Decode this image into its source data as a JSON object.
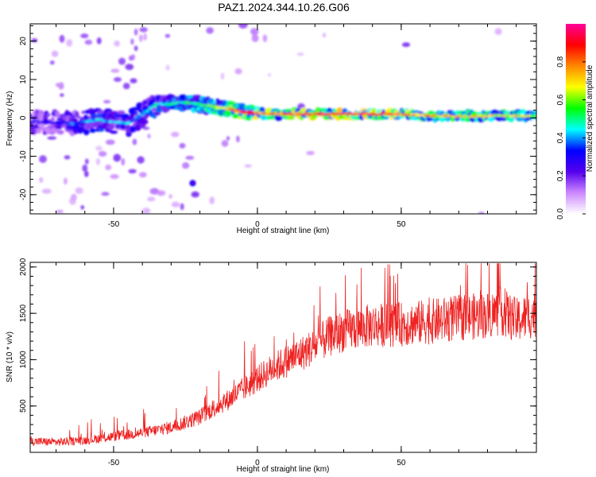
{
  "title": "PAZ1.2024.344.10.26.G06",
  "chart_data": [
    {
      "type": "heatmap",
      "xlabel": "Height of straight line (km)",
      "ylabel": "Frequency (Hz)",
      "xlim": [
        -79,
        97
      ],
      "ylim": [
        -25,
        24.5
      ],
      "xticks": [
        -50,
        0,
        50
      ],
      "yticks": [
        -20,
        -10,
        0,
        10,
        20
      ],
      "colorbar": {
        "label": "Normalized spectral amplitude",
        "range": [
          0,
          1
        ],
        "ticks": [
          0.0,
          0.2,
          0.4,
          0.6,
          0.8
        ],
        "colors": [
          "#ffffff",
          "#cc88ff",
          "#5500ee",
          "#0000ff",
          "#00ffff",
          "#00ff00",
          "#ffff00",
          "#ff8800",
          "#ff0000",
          "#ff0099"
        ]
      },
      "ridge": [
        {
          "x": -75,
          "freq": -1.0,
          "amp": 0.3
        },
        {
          "x": -65,
          "freq": -1.5,
          "amp": 0.35
        },
        {
          "x": -55,
          "freq": -0.5,
          "amp": 0.45
        },
        {
          "x": -45,
          "freq": -1.5,
          "amp": 0.4
        },
        {
          "x": -35,
          "freq": 3.5,
          "amp": 0.45
        },
        {
          "x": -25,
          "freq": 4.0,
          "amp": 0.5
        },
        {
          "x": -15,
          "freq": 3.0,
          "amp": 0.6
        },
        {
          "x": -5,
          "freq": 1.5,
          "amp": 0.85
        },
        {
          "x": 5,
          "freq": 1.0,
          "amp": 0.8
        },
        {
          "x": 25,
          "freq": 1.0,
          "amp": 0.9
        },
        {
          "x": 45,
          "freq": 1.0,
          "amp": 0.85
        },
        {
          "x": 65,
          "freq": 0.5,
          "amp": 0.7
        },
        {
          "x": 95,
          "freq": 0.5,
          "amp": 0.65
        }
      ]
    },
    {
      "type": "line",
      "xlabel": "Height of straight line (km)",
      "ylabel": "SNR (10 * v/v)",
      "xlim": [
        -79,
        97
      ],
      "ylim": [
        0,
        2050
      ],
      "xticks": [
        -50,
        0,
        50
      ],
      "yticks": [
        500,
        1000,
        1500,
        2000
      ],
      "color": "#ee2222",
      "x": [
        -79,
        -70,
        -60,
        -50,
        -40,
        -30,
        -20,
        -15,
        -10,
        -5,
        0,
        5,
        10,
        15,
        20,
        25,
        30,
        40,
        50,
        60,
        70,
        80,
        85,
        90,
        97
      ],
      "y": [
        120,
        110,
        130,
        170,
        210,
        270,
        380,
        480,
        570,
        680,
        790,
        900,
        980,
        1060,
        1150,
        1250,
        1310,
        1370,
        1380,
        1410,
        1450,
        1480,
        1520,
        1420,
        1500
      ]
    }
  ]
}
